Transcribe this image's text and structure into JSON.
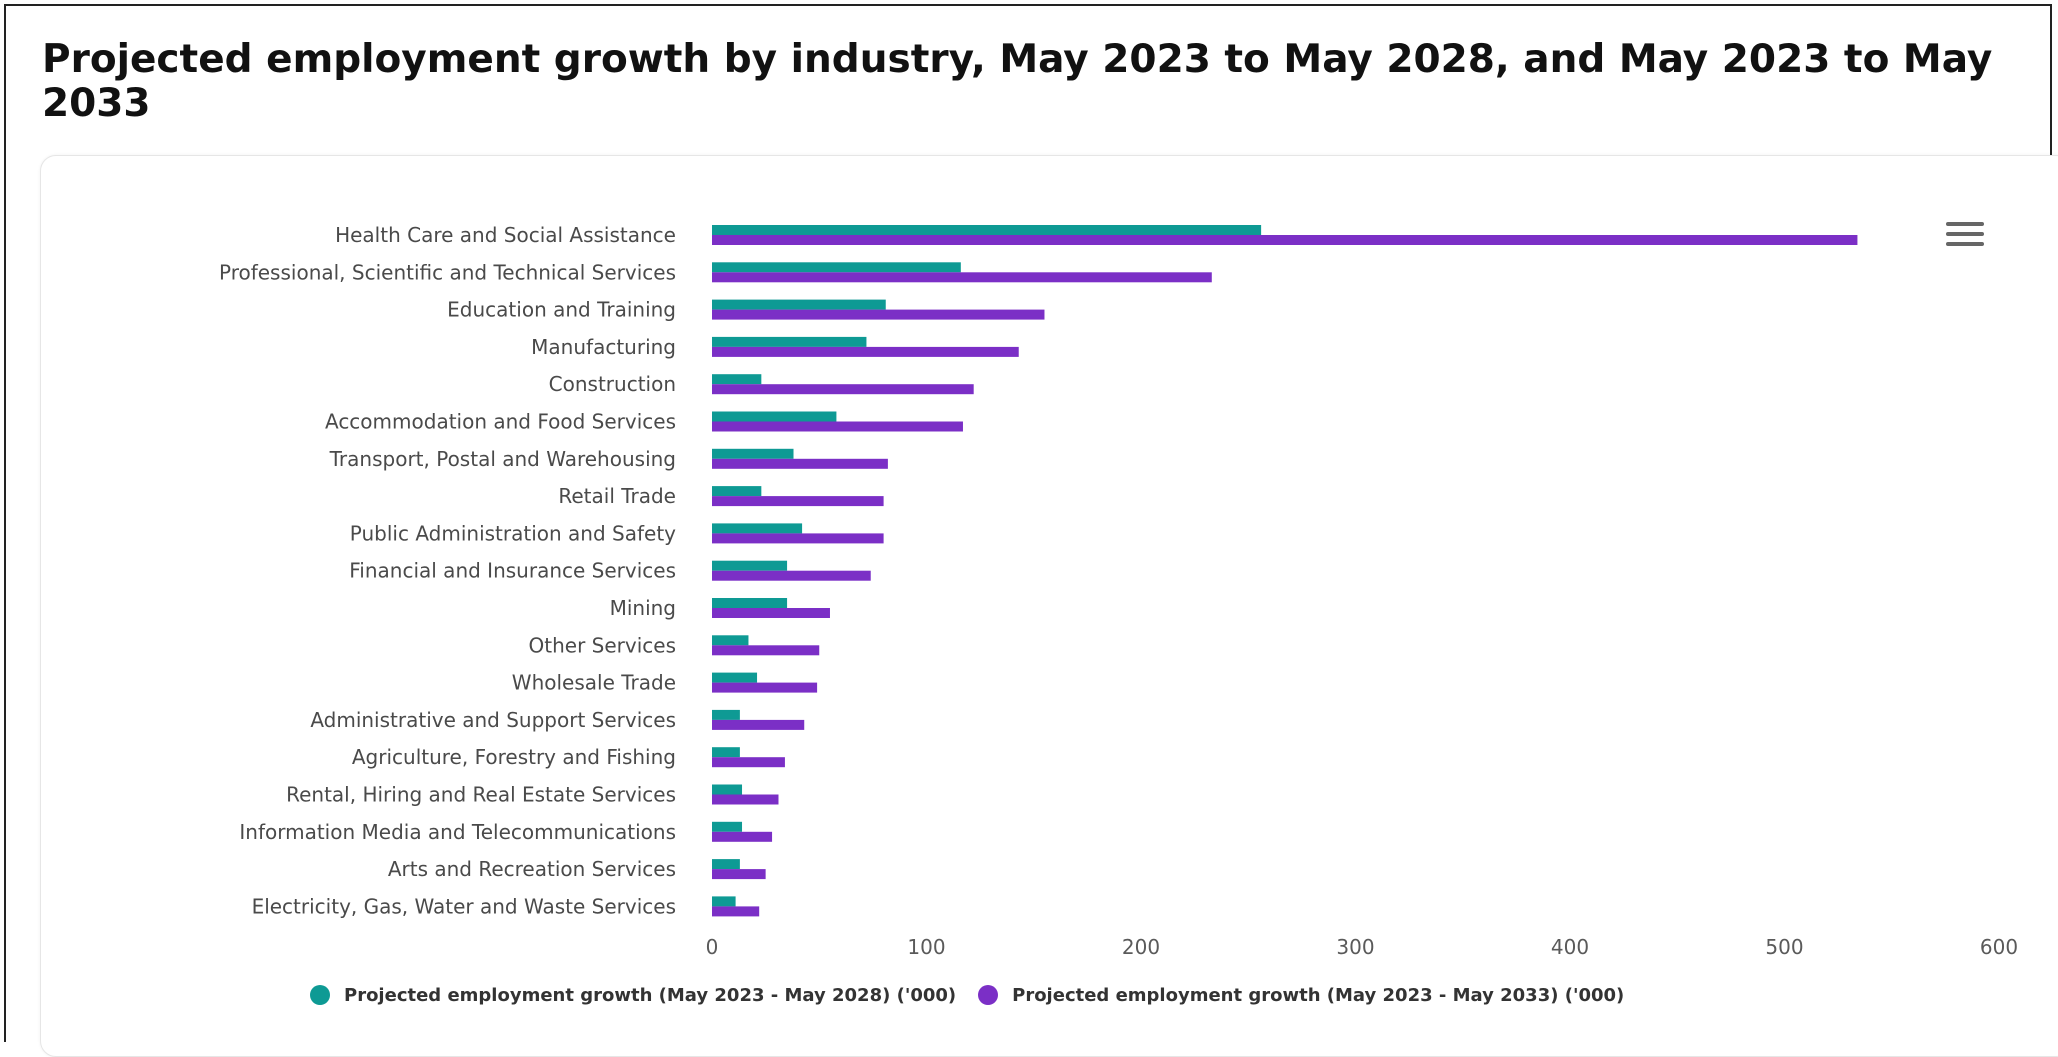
{
  "page": {
    "title": "Projected employment growth by industry, May 2023 to May 2028, and May 2023 to May 2033"
  },
  "colors": {
    "series_2028": "#0e9a94",
    "series_2033": "#7b2fc6",
    "menu_icon": "#666666"
  },
  "menu": {
    "icon": "hamburger-menu-icon"
  },
  "chart_data": {
    "type": "bar",
    "orientation": "horizontal",
    "title": "Projected employment growth by industry, May 2023 to May 2028, and May 2023 to May 2033",
    "xlabel": "",
    "ylabel": "",
    "xlim": [
      0,
      600
    ],
    "ticks": [
      0,
      100,
      200,
      300,
      400,
      500,
      600
    ],
    "grid": false,
    "legend_position": "bottom",
    "categories": [
      "Health Care and Social Assistance",
      "Professional, Scientific and Technical Services",
      "Education and Training",
      "Manufacturing",
      "Construction",
      "Accommodation and Food Services",
      "Transport, Postal and Warehousing",
      "Retail Trade",
      "Public Administration and Safety",
      "Financial and Insurance Services",
      "Mining",
      "Other Services",
      "Wholesale Trade",
      "Administrative and Support Services",
      "Agriculture, Forestry and Fishing",
      "Rental, Hiring and Real Estate Services",
      "Information Media and Telecommunications",
      "Arts and Recreation Services",
      "Electricity, Gas, Water and Waste Services"
    ],
    "series": [
      {
        "name": "Projected employment growth (May 2023 - May 2028) ('000)",
        "values": [
          256,
          116,
          81,
          72,
          23,
          58,
          38,
          23,
          42,
          35,
          35,
          17,
          21,
          13,
          13,
          14,
          14,
          13,
          11
        ]
      },
      {
        "name": "Projected employment growth (May 2023 - May 2033) ('000)",
        "values": [
          534,
          233,
          155,
          143,
          122,
          117,
          82,
          80,
          80,
          74,
          55,
          50,
          49,
          43,
          34,
          31,
          28,
          25,
          22
        ]
      }
    ]
  }
}
